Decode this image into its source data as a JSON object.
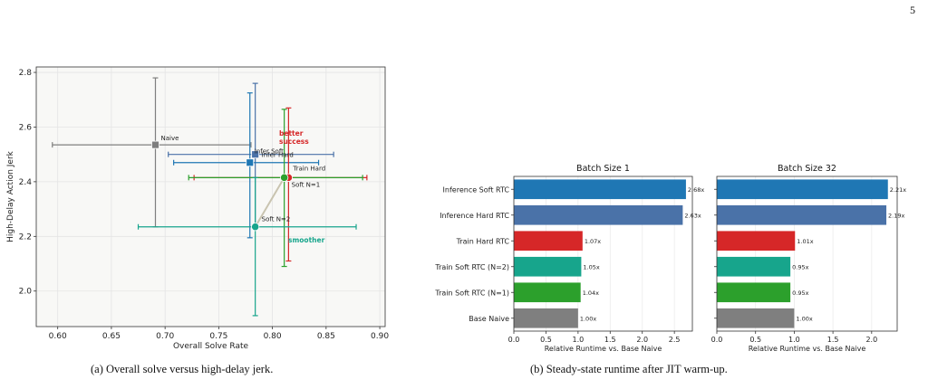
{
  "page_number": "5",
  "captions": {
    "a": "(a) Overall solve versus high-delay jerk.",
    "b": "(b) Steady-state runtime after JIT warm-up."
  },
  "colors": {
    "naive": "#7f7f7f",
    "infer_hard": "#4a72a8",
    "infer_soft": "#1f77b4",
    "train_hard": "#d62728",
    "soft_n1": "#2ca02c",
    "soft_n2": "#17a58c",
    "better": "#d62728",
    "smoother": "#17a58c"
  },
  "chart_data": [
    {
      "type": "scatter",
      "title": "",
      "xlabel": "Overall Solve Rate",
      "ylabel": "High-Delay Action Jerk",
      "xlim": [
        0.58,
        0.905
      ],
      "ylim": [
        1.87,
        2.82
      ],
      "xticks": [
        "0.60",
        "0.65",
        "0.70",
        "0.75",
        "0.80",
        "0.85",
        "0.90"
      ],
      "yticks": [
        "2.0",
        "2.2",
        "2.4",
        "2.6",
        "2.8"
      ],
      "grid": true,
      "points": [
        {
          "label": "Naive",
          "x": 0.691,
          "y": 2.535,
          "xerr": [
            0.595,
            0.78
          ],
          "yerr": [
            2.235,
            2.78
          ],
          "color": "#7f7f7f",
          "marker": "square"
        },
        {
          "label": "Infer Hard",
          "x": 0.784,
          "y": 2.5,
          "xerr": [
            0.703,
            0.857
          ],
          "yerr": [
            2.24,
            2.76
          ],
          "color": "#4a72a8",
          "marker": "square"
        },
        {
          "label": "Infer Soft",
          "x": 0.779,
          "y": 2.47,
          "xerr": [
            0.708,
            0.843
          ],
          "yerr": [
            2.195,
            2.725
          ],
          "color": "#1f77b4",
          "marker": "square"
        },
        {
          "label": "Train Hard",
          "x": 0.815,
          "y": 2.415,
          "xerr": [
            0.727,
            0.888
          ],
          "yerr": [
            2.11,
            2.67
          ],
          "color": "#d62728",
          "marker": "circle"
        },
        {
          "label": "Soft N=1",
          "x": 0.811,
          "y": 2.415,
          "xerr": [
            0.722,
            0.884
          ],
          "yerr": [
            2.09,
            2.665
          ],
          "color": "#2ca02c",
          "marker": "circle"
        },
        {
          "label": "Soft N=2",
          "x": 0.784,
          "y": 2.235,
          "xerr": [
            0.675,
            0.878
          ],
          "yerr": [
            1.91,
            2.415
          ],
          "color": "#17a58c",
          "marker": "circle"
        }
      ],
      "path": [
        "Soft N=2",
        "Soft N=1",
        "Train Hard"
      ],
      "annotations": [
        {
          "text": "better",
          "color": "#d62728"
        },
        {
          "text": "success",
          "color": "#d62728"
        },
        {
          "text": "smoother",
          "color": "#17a58c"
        }
      ]
    },
    {
      "type": "bar",
      "orientation": "horizontal",
      "title": "Batch Size 1",
      "xlabel": "Relative Runtime vs. Base Naive",
      "xlim": [
        0,
        2.78
      ],
      "xticks": [
        "0.0",
        "0.5",
        "1.0",
        "1.5",
        "2.0",
        "2.5"
      ],
      "categories": [
        "Inference Soft RTC",
        "Inference Hard RTC",
        "Train Hard RTC",
        "Train Soft RTC (N=2)",
        "Train Soft RTC (N=1)",
        "Base Naive"
      ],
      "values": [
        2.68,
        2.63,
        1.07,
        1.05,
        1.04,
        1.0
      ],
      "labels": [
        "2.68x",
        "2.63x",
        "1.07x",
        "1.05x",
        "1.04x",
        "1.00x"
      ],
      "bar_colors": [
        "#1f77b4",
        "#4a72a8",
        "#d62728",
        "#17a58c",
        "#2ca02c",
        "#7f7f7f"
      ]
    },
    {
      "type": "bar",
      "orientation": "horizontal",
      "title": "Batch Size 32",
      "xlabel": "Relative Runtime vs. Base Naive",
      "xlim": [
        0,
        2.33
      ],
      "xticks": [
        "0.0",
        "0.5",
        "1.0",
        "1.5",
        "2.0"
      ],
      "categories": [
        "Inference Soft RTC",
        "Inference Hard RTC",
        "Train Hard RTC",
        "Train Soft RTC (N=2)",
        "Train Soft RTC (N=1)",
        "Base Naive"
      ],
      "values": [
        2.21,
        2.19,
        1.01,
        0.95,
        0.95,
        1.0
      ],
      "labels": [
        "2.21x",
        "2.19x",
        "1.01x",
        "0.95x",
        "0.95x",
        "1.00x"
      ],
      "bar_colors": [
        "#1f77b4",
        "#4a72a8",
        "#d62728",
        "#17a58c",
        "#2ca02c",
        "#7f7f7f"
      ]
    }
  ]
}
